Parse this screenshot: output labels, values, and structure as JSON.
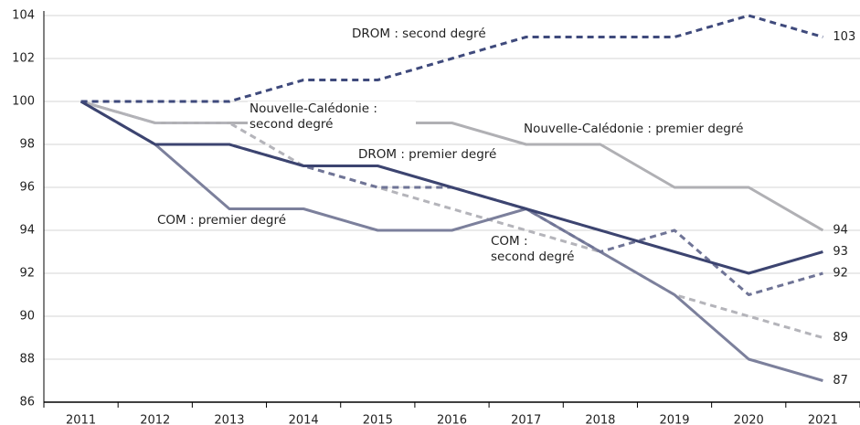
{
  "chart_data": {
    "type": "line",
    "categories": [
      "2011",
      "2012",
      "2013",
      "2014",
      "2015",
      "2016",
      "2017",
      "2018",
      "2019",
      "2020",
      "2021"
    ],
    "ylim": [
      86,
      104
    ],
    "yticks": [
      86,
      88,
      90,
      92,
      94,
      96,
      98,
      100,
      102,
      104
    ],
    "grid": true,
    "series": [
      {
        "name": "DROM : second degré",
        "color": "#3f4a7c",
        "dashed": true,
        "values": [
          100,
          100,
          100,
          101,
          101,
          102,
          103,
          103,
          103,
          104,
          103
        ]
      },
      {
        "name": "Nouvelle-Calédonie : premier degré",
        "color": "#b0b0b4",
        "dashed": false,
        "values": [
          100,
          99,
          99,
          99,
          99,
          99,
          98,
          98,
          96,
          96,
          94
        ]
      },
      {
        "name": "DROM : premier degré",
        "color": "#3c4470",
        "dashed": false,
        "values": [
          100,
          98,
          98,
          97,
          97,
          96,
          95,
          94,
          93,
          92,
          93
        ]
      },
      {
        "name": "COM : second degré",
        "color": "#6f7496",
        "dashed": true,
        "values": [
          100,
          98,
          98,
          97,
          96,
          96,
          95,
          93,
          94,
          91,
          92
        ]
      },
      {
        "name": "Nouvelle-Calédonie : second degré",
        "color": "#b4b4ba",
        "dashed": true,
        "values": [
          100,
          99,
          99,
          97,
          96,
          95,
          94,
          93,
          91,
          90,
          89
        ]
      },
      {
        "name": "COM : premier degré",
        "color": "#7c809c",
        "dashed": false,
        "values": [
          100,
          98,
          95,
          95,
          94,
          94,
          95,
          93,
          91,
          88,
          87
        ]
      }
    ]
  }
}
